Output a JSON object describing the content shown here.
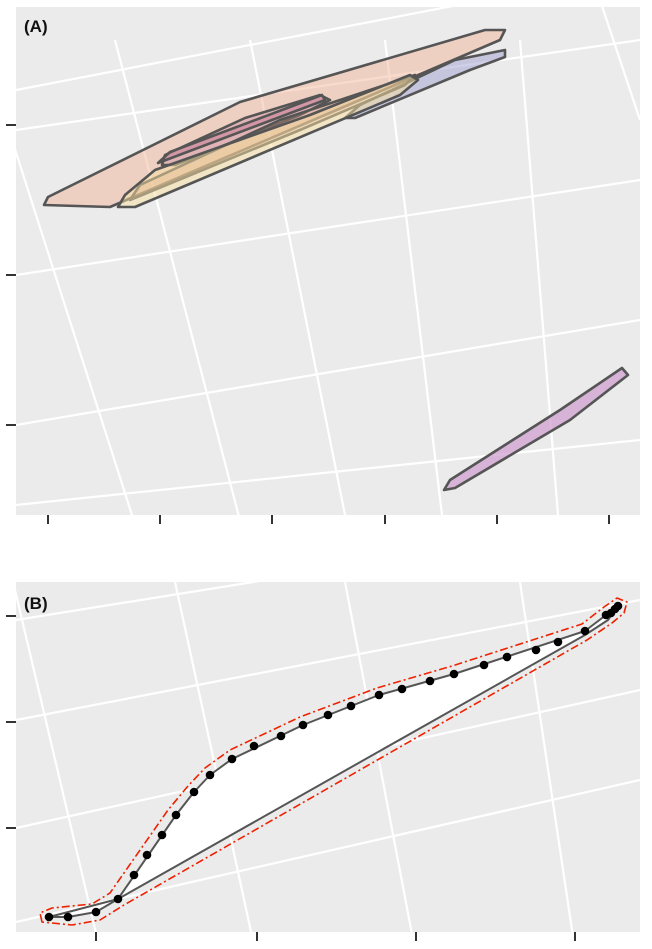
{
  "chart_data": [
    {
      "panel_label": "(A)",
      "type": "polygon",
      "grid": true,
      "grid_rotated": true,
      "background_color": "#ebebeb",
      "x_ticks": [
        "",
        "",
        "",
        "",
        "",
        ""
      ],
      "y_ticks": [
        "",
        "",
        ""
      ],
      "xlabel": "",
      "ylabel": "",
      "shapes": [
        {
          "fill": "#f0b090",
          "opacity": 0.45
        },
        {
          "fill": "#a0a0d0",
          "opacity": 0.5
        },
        {
          "fill": "#c880a0",
          "opacity": 0.35
        },
        {
          "fill": "#c89080",
          "opacity": 0.35
        },
        {
          "fill": "#c07090",
          "opacity": 0.45
        },
        {
          "fill": "#f8e0a0",
          "opacity": 0.5
        },
        {
          "fill": "#d0a0d0",
          "opacity": 0.75
        }
      ],
      "outline_color": "#555555"
    },
    {
      "panel_label": "(B)",
      "type": "polygon+scatter",
      "grid": true,
      "grid_rotated": true,
      "background_color": "#ebebeb",
      "x_ticks": [
        "",
        "",
        "",
        ""
      ],
      "y_ticks": [
        "",
        "",
        ""
      ],
      "xlabel": "",
      "ylabel": "",
      "hull_fill": "#ffffff",
      "hull_outline": "#555555",
      "buffer_outline": "#ee2200",
      "point_color": "#000000",
      "points_count": 29
    }
  ]
}
